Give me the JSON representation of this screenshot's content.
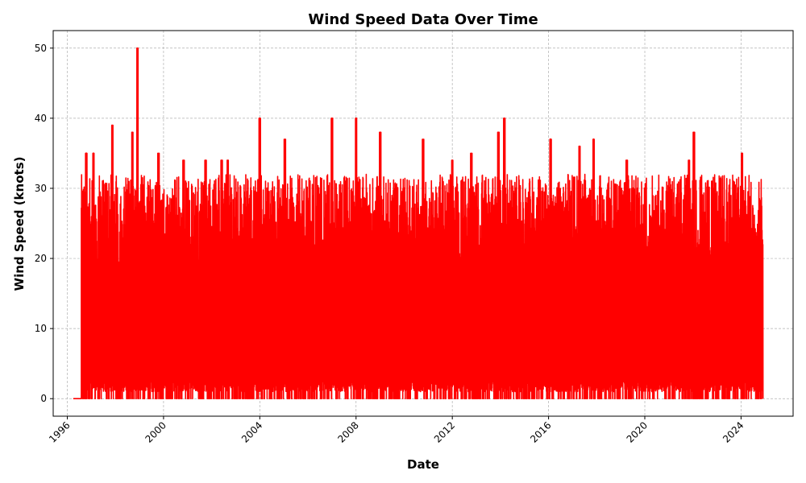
{
  "chart_data": {
    "type": "line",
    "title": "Wind Speed Data Over Time",
    "xlabel": "Date",
    "ylabel": "Wind Speed (knots)",
    "x_type": "date",
    "xlim": [
      "1995-06-01",
      "2026-03-01"
    ],
    "ylim": [
      -2.5,
      52.5
    ],
    "x_ticks": [
      "1996",
      "2000",
      "2004",
      "2008",
      "2012",
      "2016",
      "2020",
      "2024"
    ],
    "y_ticks": [
      0,
      10,
      20,
      30,
      40,
      50
    ],
    "grid": true,
    "legend": "none",
    "series": [
      {
        "color": "#ff0000",
        "data_start": "1996-04-01",
        "data_end": "2024-12-01",
        "baseline_until": "1996-08-01",
        "min": 0,
        "peaks": [
          {
            "x": "1996-10-15",
            "y": 35
          },
          {
            "x": "1997-02-01",
            "y": 35
          },
          {
            "x": "1997-11-15",
            "y": 39
          },
          {
            "x": "1998-09-15",
            "y": 38
          },
          {
            "x": "1998-12-01",
            "y": 50
          },
          {
            "x": "1999-10-15",
            "y": 35
          },
          {
            "x": "2000-11-01",
            "y": 34
          },
          {
            "x": "2001-10-01",
            "y": 34
          },
          {
            "x": "2002-06-01",
            "y": 34
          },
          {
            "x": "2002-09-01",
            "y": 34
          },
          {
            "x": "2004-01-01",
            "y": 40
          },
          {
            "x": "2005-01-15",
            "y": 37
          },
          {
            "x": "2007-01-01",
            "y": 40
          },
          {
            "x": "2008-01-01",
            "y": 40
          },
          {
            "x": "2009-01-01",
            "y": 38
          },
          {
            "x": "2010-10-15",
            "y": 37
          },
          {
            "x": "2012-01-01",
            "y": 34
          },
          {
            "x": "2012-10-15",
            "y": 35
          },
          {
            "x": "2013-12-01",
            "y": 38
          },
          {
            "x": "2014-03-01",
            "y": 40
          },
          {
            "x": "2016-02-01",
            "y": 37
          },
          {
            "x": "2017-04-15",
            "y": 36
          },
          {
            "x": "2017-11-15",
            "y": 37
          },
          {
            "x": "2019-04-01",
            "y": 34
          },
          {
            "x": "2021-11-01",
            "y": 34
          },
          {
            "x": "2022-01-15",
            "y": 38
          },
          {
            "x": "2024-01-15",
            "y": 35
          }
        ]
      }
    ]
  }
}
